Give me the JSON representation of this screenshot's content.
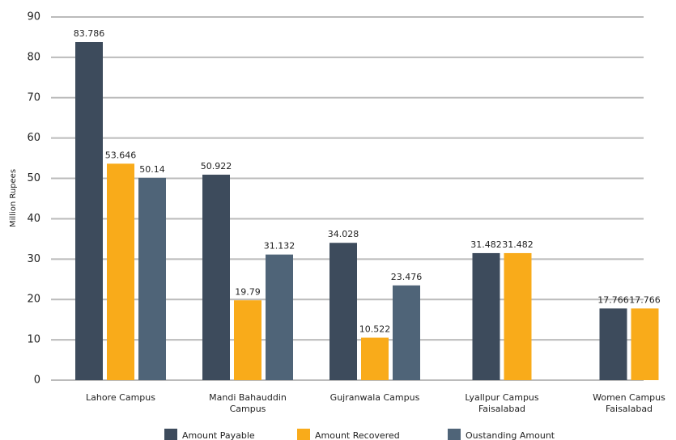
{
  "chart_data": {
    "type": "bar",
    "y_label": "Million Rupees",
    "categories": [
      "Lahore Campus",
      "Mandi Bahauddin Campus",
      "Gujranwala Campus",
      "Lyallpur Campus Faisalabad",
      "Women Campus Faisalabad"
    ],
    "series": [
      {
        "name": "Amount Payable",
        "color": "#3d4b5c",
        "values": [
          83.786,
          50.922,
          34.028,
          31.482,
          17.766
        ]
      },
      {
        "name": "Amount Recovered",
        "color": "#f9ab1a",
        "values": [
          53.646,
          19.79,
          10.522,
          31.482,
          17.766
        ]
      },
      {
        "name": "Oustanding Amount",
        "color": "#4f6478",
        "values": [
          50.14,
          31.132,
          23.476,
          null,
          null
        ]
      }
    ],
    "ylim": [
      0,
      90
    ],
    "yticks": [
      0,
      10,
      20,
      30,
      40,
      50,
      60,
      70,
      80,
      90
    ],
    "grid": true,
    "legend": "bottom"
  }
}
